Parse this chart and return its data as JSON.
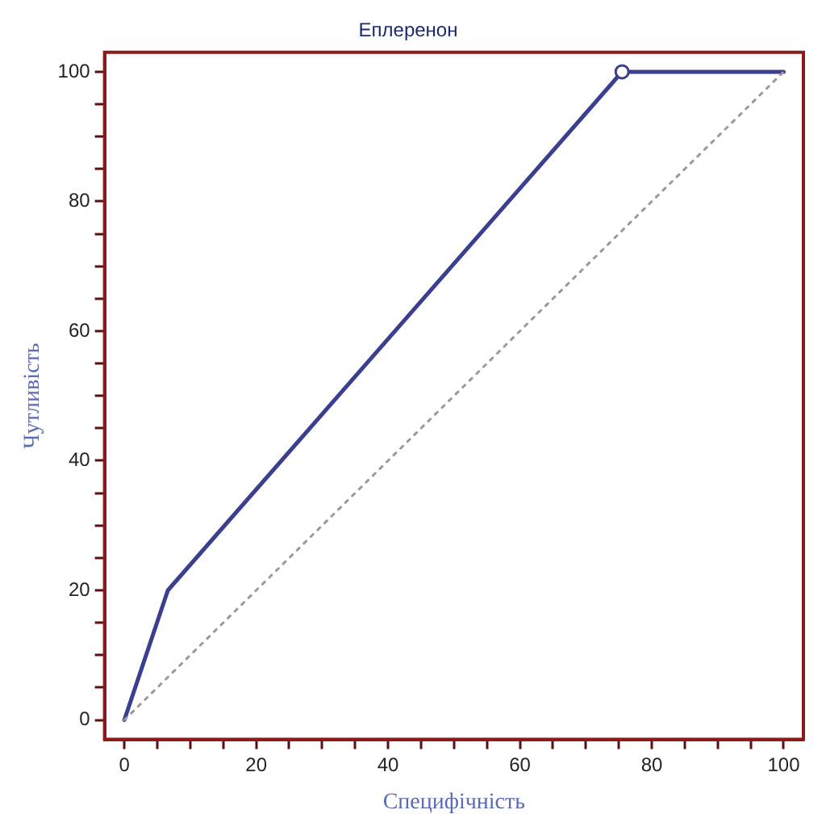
{
  "chart_data": {
    "type": "line",
    "title": "Еплеренон",
    "xlabel": "Специфічність",
    "ylabel": "Чутливість",
    "xlim": [
      -3,
      103
    ],
    "ylim": [
      -3,
      103
    ],
    "xticks": [
      0,
      {
        "value": 5,
        "label": null
      },
      {
        "value": 10,
        "label": null
      },
      {
        "value": 15,
        "label": null
      },
      20,
      {
        "value": 25,
        "label": null
      },
      {
        "value": 30,
        "label": null
      },
      {
        "value": 35,
        "label": null
      },
      40,
      {
        "value": 45,
        "label": null
      },
      {
        "value": 50,
        "label": null
      },
      {
        "value": 55,
        "label": null
      },
      60,
      {
        "value": 65,
        "label": null
      },
      {
        "value": 70,
        "label": null
      },
      {
        "value": 75,
        "label": null
      },
      80,
      {
        "value": 85,
        "label": null
      },
      {
        "value": 90,
        "label": null
      },
      {
        "value": 95,
        "label": null
      },
      100
    ],
    "yticks": [
      0,
      {
        "value": 5,
        "label": null
      },
      {
        "value": 10,
        "label": null
      },
      {
        "value": 15,
        "label": null
      },
      20,
      {
        "value": 25,
        "label": null
      },
      {
        "value": 30,
        "label": null
      },
      {
        "value": 35,
        "label": null
      },
      40,
      {
        "value": 45,
        "label": null
      },
      {
        "value": 50,
        "label": null
      },
      {
        "value": 55,
        "label": null
      },
      60,
      {
        "value": 65,
        "label": null
      },
      {
        "value": 70,
        "label": null
      },
      {
        "value": 75,
        "label": null
      },
      80,
      {
        "value": 85,
        "label": null
      },
      {
        "value": 90,
        "label": null
      },
      {
        "value": 95,
        "label": null
      },
      100
    ],
    "grid": false,
    "legend": false,
    "series": [
      {
        "type": "line",
        "color": "#3b3f8f",
        "x": [
          0,
          6.6,
          75.5,
          100
        ],
        "values": [
          0,
          20,
          100,
          100
        ],
        "marker": "none",
        "line_style": "solid"
      },
      {
        "type": "line",
        "color": "#9a9a9a",
        "x": [
          0,
          100
        ],
        "values": [
          0,
          100
        ],
        "marker": "none",
        "line_style": "dotted"
      },
      {
        "type": "scatter",
        "color": "#3b3f8f",
        "x": [
          75.5
        ],
        "values": [
          100
        ],
        "marker": "circle"
      }
    ]
  }
}
